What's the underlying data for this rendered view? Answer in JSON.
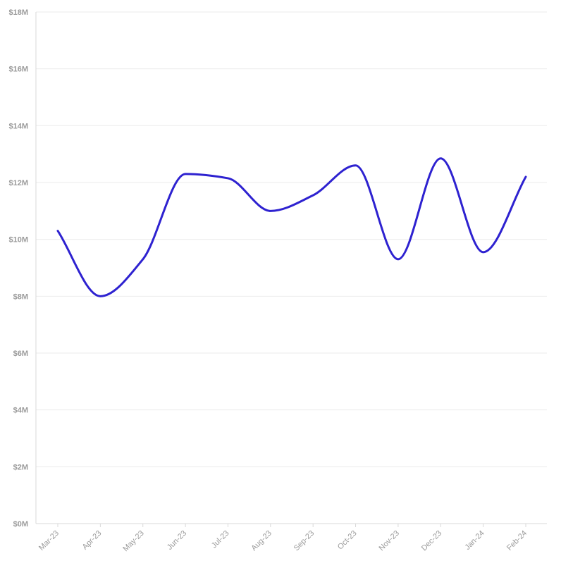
{
  "chart_data": {
    "type": "line",
    "title": "",
    "xlabel": "",
    "ylabel": "",
    "categories": [
      "Mar-23",
      "Apr-23",
      "May-23",
      "Jun-23",
      "Jul-23",
      "Aug-23",
      "Sep-23",
      "Oct-23",
      "Nov-23",
      "Dec-23",
      "Jan-24",
      "Feb-24"
    ],
    "series": [
      {
        "values": [
          10.3,
          8.0,
          9.3,
          12.3,
          12.15,
          11.0,
          11.55,
          12.6,
          9.3,
          12.85,
          9.55,
          12.2
        ]
      }
    ],
    "y_ticks": [
      "$0M",
      "$2M",
      "$4M",
      "$6M",
      "$8M",
      "$10M",
      "$12M",
      "$14M",
      "$16M",
      "$18M"
    ],
    "ylim": [
      0,
      18
    ],
    "y_unit": "million USD",
    "grid": true,
    "smoothed": true,
    "legend": "none"
  },
  "colors": {
    "line": "#2e22d0",
    "grid": "#ebebeb",
    "axis": "#d9d9d9",
    "tick_text": "#9a9a9a",
    "background": "#ffffff"
  }
}
